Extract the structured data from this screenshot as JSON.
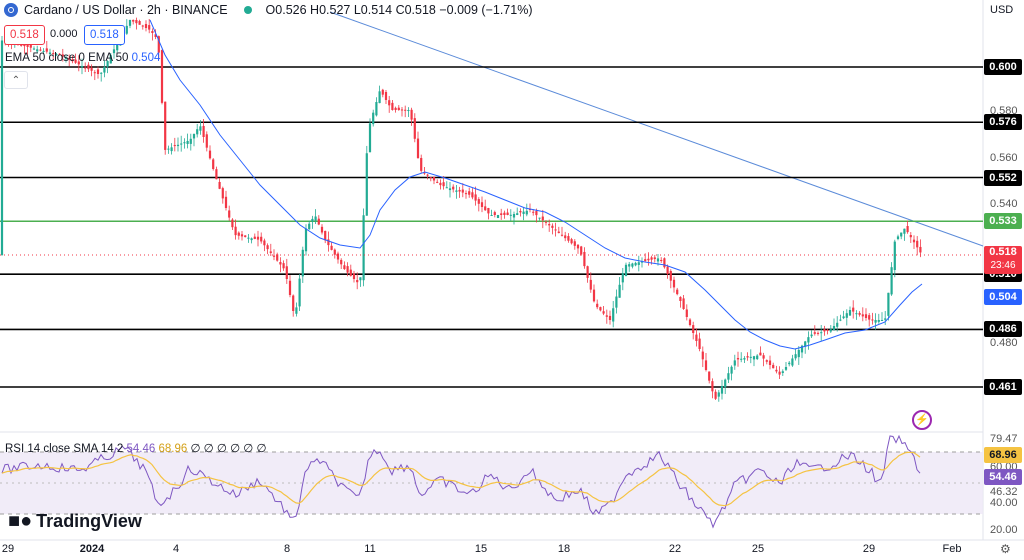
{
  "header": {
    "symbol": "Cardano / US Dollar · 2h · BINANCE",
    "open": "O0.526",
    "high": "H0.527",
    "low": "L0.514",
    "close": "C0.518",
    "change": "−0.009 (−1.71%)",
    "bid": "0.518",
    "spread": "0.000",
    "ask": "0.518"
  },
  "indicators": {
    "ema_label": "EMA 50 close 0",
    "ema_label2": "EMA 50",
    "ema_value": "0.504",
    "rsi_label": "RSI 14 close SMA 14 2",
    "rsi_value": "54.46",
    "rsi_sma_value": "68.96",
    "rsi_extra": "∅ ∅ ∅ ∅ ∅ ∅"
  },
  "axis": {
    "currency": "USD",
    "price_ticks": [
      "0.580",
      "0.560",
      "0.540",
      "0.480"
    ],
    "rsi_ticks": [
      "79.47",
      "60.00",
      "46.32",
      "40.00",
      "20.00"
    ],
    "x_ticks": [
      "29",
      "2024",
      "4",
      "8",
      "11",
      "15",
      "18",
      "22",
      "25",
      "29",
      "Feb"
    ]
  },
  "levels": [
    {
      "value": "0.600",
      "color": "#000000"
    },
    {
      "value": "0.576",
      "color": "#000000"
    },
    {
      "value": "0.552",
      "color": "#000000"
    },
    {
      "value": "0.533",
      "color": "#4caf50"
    },
    {
      "value": "0.510",
      "color": "#000000"
    },
    {
      "value": "0.486",
      "color": "#000000"
    },
    {
      "value": "0.461",
      "color": "#000000"
    }
  ],
  "current_price": {
    "value": "0.518",
    "countdown": "23:46"
  },
  "ema_badge": "0.504",
  "rsi_badges": {
    "sma": "68.96",
    "rsi": "54.46"
  },
  "brand": "TradingView",
  "colors": {
    "up": "#22ab94",
    "down": "#f23645",
    "ema": "#2962ff",
    "rsi": "#7e57c2",
    "rsi_sma": "#f5c342",
    "trend": "#5b8bd9"
  }
}
